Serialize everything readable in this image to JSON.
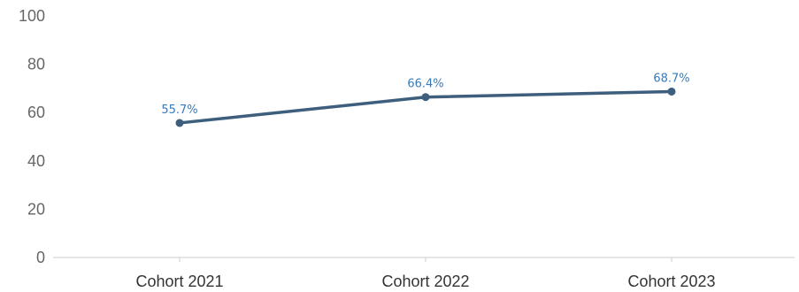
{
  "chart_data": {
    "type": "line",
    "categories": [
      "Cohort 2021",
      "Cohort 2022",
      "Cohort 2023"
    ],
    "series": [
      {
        "values": [
          55.7,
          66.4,
          68.7
        ],
        "data_labels": [
          "55.7%",
          "66.4%",
          "68.7%"
        ]
      }
    ],
    "y_ticks": [
      "0",
      "20",
      "40",
      "60",
      "80",
      "100"
    ],
    "ylim": [
      0,
      100
    ],
    "grid": false,
    "legend": "none",
    "colors": {
      "line": "#3d5f7d",
      "marker": "#3d5f7d",
      "data_label": "#3a7ab8",
      "tick_label": "#666666",
      "x_tick_label": "#333333",
      "axis": "#cccccc"
    }
  }
}
